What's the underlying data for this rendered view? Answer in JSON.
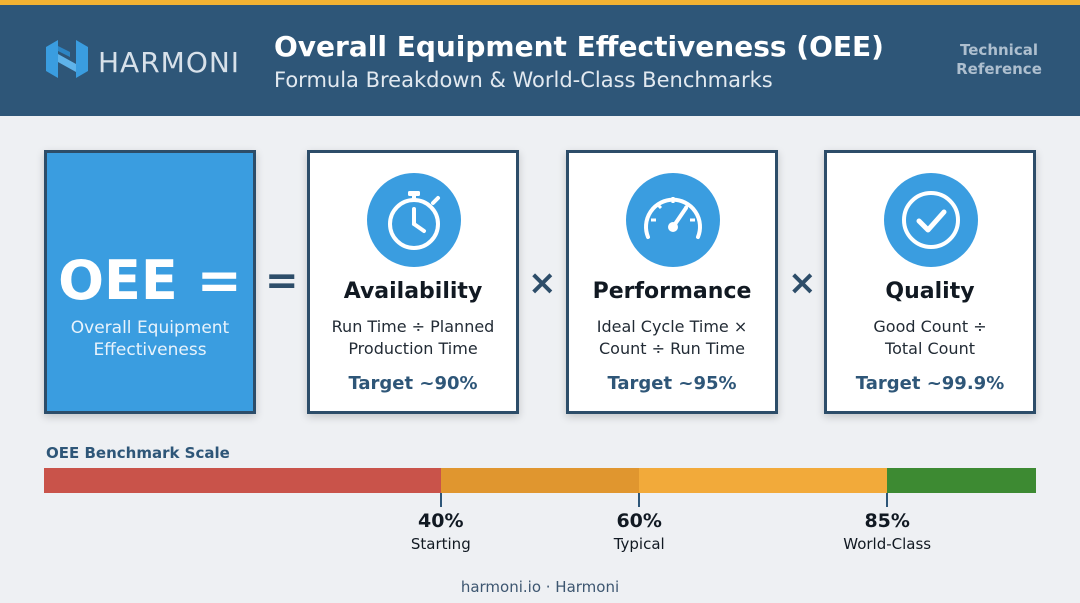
{
  "header": {
    "brand": "HARMONI",
    "title": "Overall Equipment Effectiveness (OEE)",
    "subtitle": "Formula Breakdown & World-Class Benchmarks",
    "badge_line1": "Technical",
    "badge_line2": "Reference",
    "logo_icon": "harmoni-logo-icon"
  },
  "formula": {
    "oee_label": "OEE =",
    "oee_desc_line1": "Overall Equipment",
    "oee_desc_line2": "Effectiveness",
    "equals_symbol": "=",
    "multiply_symbol": "×",
    "cards": [
      {
        "icon": "stopwatch-icon",
        "title": "Availability",
        "formula_line1": "Run Time ÷ Planned",
        "formula_line2": "Production Time",
        "target": "Target ~90%"
      },
      {
        "icon": "speedometer-icon",
        "title": "Performance",
        "formula_line1": "Ideal Cycle Time ×",
        "formula_line2": "Count ÷ Run Time",
        "target": "Target ~95%"
      },
      {
        "icon": "check-circle-icon",
        "title": "Quality",
        "formula_line1": "Good Count ÷",
        "formula_line2": "Total Count",
        "target": "Target ~99.9%"
      }
    ]
  },
  "scale": {
    "title": "OEE Benchmark Scale",
    "segments": [
      {
        "from": 0,
        "to": 40,
        "color": "#c9534a"
      },
      {
        "from": 40,
        "to": 60,
        "color": "#e0962f"
      },
      {
        "from": 60,
        "to": 85,
        "color": "#f2aa3a"
      },
      {
        "from": 85,
        "to": 100,
        "color": "#3d8a32"
      }
    ],
    "ticks": [
      {
        "value": 40,
        "value_label": "40%",
        "label": "Starting"
      },
      {
        "value": 60,
        "value_label": "60%",
        "label": "Typical"
      },
      {
        "value": 85,
        "value_label": "85%",
        "label": "World-Class"
      }
    ]
  },
  "colors": {
    "header_bg": "#2e5678",
    "accent_blue": "#3a9de0",
    "top_line": "#f2b233"
  },
  "footer": "harmoni.io · Harmoni"
}
